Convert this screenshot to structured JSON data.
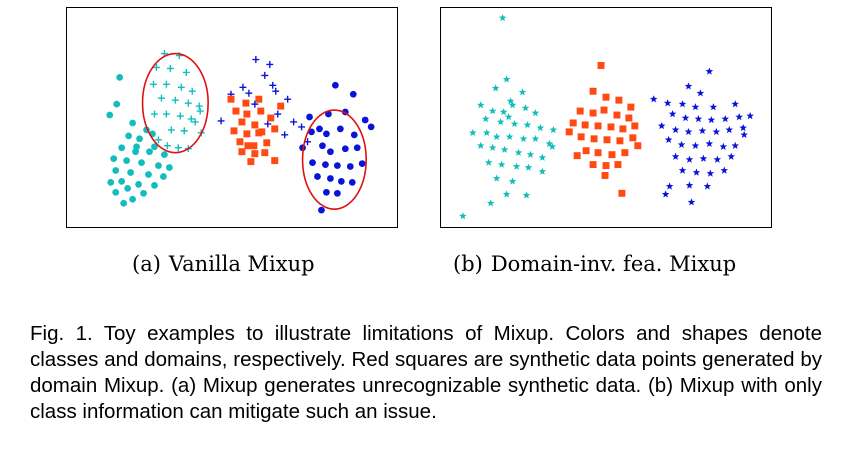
{
  "figure": {
    "panel_a": {
      "label": "(a)",
      "title": "Vanilla Mixup"
    },
    "panel_b": {
      "label": "(b)",
      "title": "Domain-inv. fea. Mixup"
    },
    "caption": "Fig. 1. Toy examples to illustrate limitations of Mixup. Colors and shapes denote classes and domains, respectively. Red squares are synthetic data points generated by domain Mixup. (a) Mixup generates unrecognizable synthetic data. (b) Mixup with only class information can mitigate such an issue."
  },
  "colors": {
    "cyan": "#12bdbd",
    "blue": "#0a14d8",
    "red_square": "#ff4a12",
    "ellipse": "#e01010"
  },
  "chart_data": [
    {
      "type": "scatter",
      "title": "",
      "xlabel": "",
      "ylabel": "",
      "xlim": [
        0,
        332
      ],
      "ylim": [
        0,
        221
      ],
      "grid": false,
      "series": [
        {
          "marker": "circle",
          "color": "cyan",
          "points": [
            [
              53,
              70
            ],
            [
              50,
              97
            ],
            [
              43,
              108
            ],
            [
              66,
              116
            ],
            [
              80,
              123
            ],
            [
              62,
              129
            ],
            [
              73,
              132
            ],
            [
              88,
              140
            ],
            [
              55,
              141
            ],
            [
              69,
              145
            ],
            [
              83,
              145
            ],
            [
              98,
              148
            ],
            [
              47,
              152
            ],
            [
              60,
              154
            ],
            [
              75,
              156
            ],
            [
              92,
              159
            ],
            [
              103,
              161
            ],
            [
              49,
              164
            ],
            [
              64,
              166
            ],
            [
              82,
              168
            ],
            [
              97,
              170
            ],
            [
              55,
              175
            ],
            [
              72,
              178
            ],
            [
              88,
              179
            ],
            [
              61,
              182
            ],
            [
              49,
              186
            ],
            [
              77,
              187
            ],
            [
              66,
              193
            ],
            [
              57,
              197
            ],
            [
              44,
              176
            ],
            [
              86,
              127
            ],
            [
              70,
              140
            ]
          ]
        },
        {
          "marker": "plus",
          "color": "cyan",
          "points": [
            [
              98,
              46
            ],
            [
              113,
              48
            ],
            [
              90,
              60
            ],
            [
              104,
              61
            ],
            [
              120,
              65
            ],
            [
              87,
              77
            ],
            [
              100,
              77
            ],
            [
              115,
              80
            ],
            [
              126,
              84
            ],
            [
              95,
              91
            ],
            [
              109,
              93
            ],
            [
              122,
              96
            ],
            [
              133,
              99
            ],
            [
              88,
              107
            ],
            [
              100,
              107
            ],
            [
              114,
              109
            ],
            [
              125,
              112
            ],
            [
              105,
              123
            ],
            [
              118,
              124
            ],
            [
              135,
              126
            ],
            [
              92,
              133
            ],
            [
              101,
              139
            ],
            [
              112,
              141
            ],
            [
              122,
              142
            ],
            [
              134,
              104
            ],
            [
              129,
              115
            ]
          ]
        },
        {
          "marker": "plus",
          "color": "blue",
          "points": [
            [
              190,
              52
            ],
            [
              204,
              57
            ],
            [
              177,
              80
            ],
            [
              199,
              68
            ],
            [
              210,
              84
            ],
            [
              189,
              97
            ],
            [
              222,
              92
            ],
            [
              212,
              107
            ],
            [
              202,
              117
            ],
            [
              228,
              115
            ],
            [
              219,
              128
            ],
            [
              236,
              120
            ],
            [
              242,
              135
            ],
            [
              155,
              114
            ],
            [
              165,
              87
            ],
            [
              207,
              78
            ],
            [
              183,
              86
            ]
          ]
        },
        {
          "marker": "circle",
          "color": "blue",
          "points": [
            [
              244,
              110
            ],
            [
              263,
              107
            ],
            [
              280,
              105
            ],
            [
              300,
              113
            ],
            [
              246,
              125
            ],
            [
              254,
              122
            ],
            [
              261,
              127
            ],
            [
              275,
              122
            ],
            [
              289,
              128
            ],
            [
              237,
              141
            ],
            [
              257,
              139
            ],
            [
              265,
              145
            ],
            [
              280,
              142
            ],
            [
              292,
              141
            ],
            [
              247,
              156
            ],
            [
              260,
              158
            ],
            [
              272,
              159
            ],
            [
              285,
              160
            ],
            [
              297,
              157
            ],
            [
              252,
              170
            ],
            [
              265,
              172
            ],
            [
              276,
              175
            ],
            [
              287,
              176
            ],
            [
              261,
              186
            ],
            [
              272,
              187
            ],
            [
              256,
              204
            ],
            [
              270,
              78
            ],
            [
              288,
              87
            ],
            [
              306,
              120
            ]
          ]
        },
        {
          "marker": "square",
          "color": "red_square",
          "points": [
            [
              165,
              92
            ],
            [
              180,
              96
            ],
            [
              193,
              92
            ],
            [
              170,
              104
            ],
            [
              181,
              107
            ],
            [
              195,
              104
            ],
            [
              176,
              115
            ],
            [
              189,
              118
            ],
            [
              205,
              111
            ],
            [
              168,
              124
            ],
            [
              181,
              127
            ],
            [
              196,
              125
            ],
            [
              209,
              122
            ],
            [
              174,
              135
            ],
            [
              188,
              139
            ],
            [
              201,
              136
            ],
            [
              176,
              145
            ],
            [
              189,
              147
            ],
            [
              199,
              146
            ],
            [
              185,
              155
            ],
            [
              209,
              154
            ],
            [
              215,
              99
            ],
            [
              193,
              126
            ],
            [
              182,
              139
            ]
          ]
        }
      ],
      "annotations": [
        {
          "shape": "ellipse",
          "color": "ellipse",
          "cx": 109,
          "cy": 96,
          "rx": 33,
          "ry": 50
        },
        {
          "shape": "ellipse",
          "color": "ellipse",
          "cx": 269,
          "cy": 153,
          "rx": 32,
          "ry": 50
        }
      ]
    },
    {
      "type": "scatter",
      "title": "",
      "xlabel": "",
      "ylabel": "",
      "xlim": [
        0,
        332
      ],
      "ylim": [
        0,
        221
      ],
      "grid": false,
      "series": [
        {
          "marker": "star",
          "color": "cyan",
          "points": [
            [
              62,
              10
            ],
            [
              66,
              72
            ],
            [
              55,
              81
            ],
            [
              82,
              85
            ],
            [
              70,
              94
            ],
            [
              40,
              98
            ],
            [
              52,
              104
            ],
            [
              63,
              105
            ],
            [
              72,
              98
            ],
            [
              85,
              101
            ],
            [
              95,
              106
            ],
            [
              45,
              112
            ],
            [
              60,
              115
            ],
            [
              74,
              117
            ],
            [
              87,
              118
            ],
            [
              100,
              121
            ],
            [
              113,
              123
            ],
            [
              32,
              126
            ],
            [
              46,
              126
            ],
            [
              56,
              130
            ],
            [
              69,
              130
            ],
            [
              83,
              132
            ],
            [
              95,
              132
            ],
            [
              109,
              137
            ],
            [
              40,
              139
            ],
            [
              52,
              141
            ],
            [
              64,
              143
            ],
            [
              78,
              146
            ],
            [
              90,
              148
            ],
            [
              102,
              151
            ],
            [
              112,
              140
            ],
            [
              48,
              156
            ],
            [
              61,
              158
            ],
            [
              76,
              160
            ],
            [
              88,
              161
            ],
            [
              56,
              172
            ],
            [
              72,
              175
            ],
            [
              66,
              188
            ],
            [
              50,
              197
            ],
            [
              22,
              210
            ],
            [
              102,
              165
            ],
            [
              86,
              189
            ],
            [
              68,
              110
            ]
          ]
        },
        {
          "marker": "square",
          "color": "red_square",
          "points": [
            [
              161,
              58
            ],
            [
              153,
              84
            ],
            [
              166,
              90
            ],
            [
              179,
              93
            ],
            [
              191,
              100
            ],
            [
              140,
              104
            ],
            [
              153,
              106
            ],
            [
              164,
              103
            ],
            [
              177,
              108
            ],
            [
              189,
              111
            ],
            [
              133,
              116
            ],
            [
              145,
              118
            ],
            [
              158,
              119
            ],
            [
              171,
              120
            ],
            [
              183,
              122
            ],
            [
              195,
              119
            ],
            [
              141,
              130
            ],
            [
              154,
              132
            ],
            [
              167,
              133
            ],
            [
              180,
              134
            ],
            [
              193,
              131
            ],
            [
              146,
              144
            ],
            [
              158,
              146
            ],
            [
              172,
              148
            ],
            [
              185,
              146
            ],
            [
              153,
              158
            ],
            [
              166,
              159
            ],
            [
              178,
              158
            ],
            [
              137,
              149
            ],
            [
              165,
              169
            ],
            [
              182,
              187
            ],
            [
              198,
              139
            ],
            [
              129,
              125
            ]
          ]
        },
        {
          "marker": "star",
          "color": "blue",
          "points": [
            [
              270,
              64
            ],
            [
              249,
              79
            ],
            [
              261,
              86
            ],
            [
              214,
              92
            ],
            [
              228,
              96
            ],
            [
              243,
              97
            ],
            [
              256,
              100
            ],
            [
              274,
              100
            ],
            [
              296,
              97
            ],
            [
              233,
              107
            ],
            [
              246,
              111
            ],
            [
              259,
              112
            ],
            [
              272,
              113
            ],
            [
              286,
              112
            ],
            [
              300,
              110
            ],
            [
              222,
              119
            ],
            [
              236,
              123
            ],
            [
              249,
              125
            ],
            [
              263,
              124
            ],
            [
              277,
              125
            ],
            [
              290,
              123
            ],
            [
              304,
              121
            ],
            [
              229,
              133
            ],
            [
              242,
              138
            ],
            [
              256,
              139
            ],
            [
              270,
              137
            ],
            [
              284,
              140
            ],
            [
              296,
              139
            ],
            [
              236,
              150
            ],
            [
              250,
              153
            ],
            [
              264,
              152
            ],
            [
              278,
              153
            ],
            [
              292,
              150
            ],
            [
              243,
              164
            ],
            [
              257,
              166
            ],
            [
              271,
              167
            ],
            [
              285,
              164
            ],
            [
              230,
              180
            ],
            [
              250,
              179
            ],
            [
              268,
              180
            ],
            [
              226,
              188
            ],
            [
              252,
              196
            ],
            [
              305,
              128
            ],
            [
              311,
              109
            ]
          ]
        }
      ]
    }
  ]
}
